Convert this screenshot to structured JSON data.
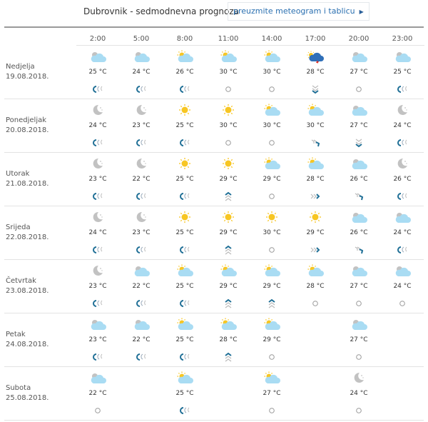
{
  "header": {
    "title": "Dubrovnik - sedmodnevna prognoza",
    "download_label": "preuzmite meteogram i tablicu",
    "download_icon": "triangle-right-icon"
  },
  "colors": {
    "sun": "#f7c623",
    "cloud": "#a9dcf3",
    "grey": "#c2c2c2",
    "wind": "#1f6f96",
    "storm": "#2f6fb8",
    "link": "#2a6fb0"
  },
  "hours": [
    "2:00",
    "5:00",
    "8:00",
    "11:00",
    "14:00",
    "17:00",
    "20:00",
    "23:00"
  ],
  "days": [
    {
      "name": "Nedjelja",
      "date": "19.08.2018.",
      "icons": [
        "cloud-night",
        "cloud-night",
        "sun-cloud",
        "sun-cloud",
        "sun-cloud",
        "storm",
        "cloud-night",
        "cloud-night"
      ],
      "temps": [
        "25 °C",
        "24 °C",
        "26 °C",
        "30 °C",
        "30 °C",
        "28 °C",
        "27 °C",
        "25 °C"
      ],
      "wind": [
        "sw",
        "sw",
        "sw",
        "calm",
        "calm",
        "n",
        "calm",
        "sw"
      ]
    },
    {
      "name": "Ponedjeljak",
      "date": "20.08.2018.",
      "icons": [
        "moon",
        "moon",
        "sun",
        "sun",
        "sun-cloud",
        "sun-cloud",
        "cloud-night",
        "moon"
      ],
      "temps": [
        "24 °C",
        "23 °C",
        "25 °C",
        "30 °C",
        "30 °C",
        "30 °C",
        "27 °C",
        "24 °C"
      ],
      "wind": [
        "sw",
        "sw",
        "sw",
        "calm",
        "calm",
        "ne",
        "n",
        "sw"
      ]
    },
    {
      "name": "Utorak",
      "date": "21.08.2018.",
      "icons": [
        "moon",
        "moon",
        "sun",
        "sun",
        "sun-cloud",
        "sun-cloud",
        "cloud-night",
        "moon"
      ],
      "temps": [
        "23 °C",
        "22 °C",
        "25 °C",
        "29 °C",
        "29 °C",
        "28 °C",
        "26 °C",
        "26 °C"
      ],
      "wind": [
        "sw",
        "sw",
        "sw",
        "s",
        "calm",
        "w",
        "ne",
        "sw"
      ]
    },
    {
      "name": "Srijeda",
      "date": "22.08.2018.",
      "icons": [
        "moon",
        "moon",
        "sun",
        "sun",
        "sun",
        "sun",
        "cloud-night",
        "cloud-night"
      ],
      "temps": [
        "24 °C",
        "23 °C",
        "25 °C",
        "29 °C",
        "30 °C",
        "29 °C",
        "26 °C",
        "24 °C"
      ],
      "wind": [
        "sw",
        "sw",
        "sw",
        "s",
        "calm",
        "w",
        "ne",
        "sw"
      ]
    },
    {
      "name": "Četvrtak",
      "date": "23.08.2018.",
      "icons": [
        "moon",
        "cloud-night",
        "sun-cloud",
        "sun-cloud",
        "sun-cloud",
        "sun-cloud",
        "cloud-night",
        "cloud-night"
      ],
      "temps": [
        "23 °C",
        "22 °C",
        "25 °C",
        "29 °C",
        "29 °C",
        "28 °C",
        "27 °C",
        "24 °C"
      ],
      "wind": [
        "sw",
        "sw",
        "sw",
        "s",
        "s",
        "calm",
        "calm",
        "calm"
      ]
    },
    {
      "name": "Petak",
      "date": "24.08.2018.",
      "icons": [
        "cloud-night",
        "cloud-night",
        "sun-cloud",
        "sun-cloud",
        "sun-cloud",
        null,
        "cloud-night",
        null
      ],
      "temps": [
        "23 °C",
        "22 °C",
        "25 °C",
        "28 °C",
        "29 °C",
        null,
        "27 °C",
        null
      ],
      "wind": [
        "sw",
        "sw",
        "sw",
        "s",
        "calm",
        null,
        "calm",
        null
      ]
    },
    {
      "name": "Subota",
      "date": "25.08.2018.",
      "icons": [
        "cloud-night",
        null,
        "sun-cloud",
        null,
        "sun-cloud",
        null,
        "moon",
        null
      ],
      "temps": [
        "22 °C",
        null,
        "25 °C",
        null,
        "27 °C",
        null,
        "24 °C",
        null
      ],
      "wind": [
        "calm",
        null,
        "sw",
        null,
        "calm",
        null,
        "calm",
        null
      ]
    }
  ]
}
